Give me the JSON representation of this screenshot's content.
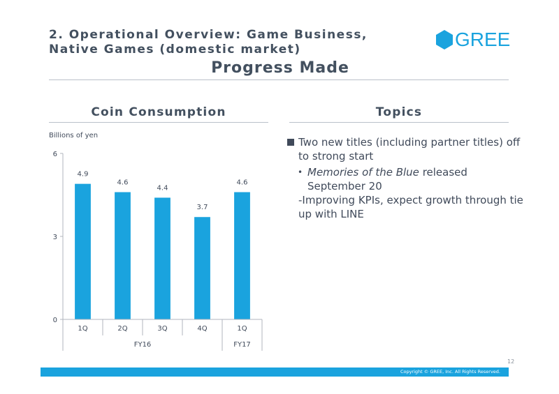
{
  "header": {
    "title_line1": "2. Operational Overview: Game Business,",
    "title_line2": "Native Games (domestic market)",
    "logo_text": "GREE",
    "headline": "Progress Made"
  },
  "left": {
    "section_title": "Coin Consumption",
    "unit_label": "Billions of yen"
  },
  "right": {
    "section_title": "Topics",
    "topic_main": "Two new titles (including partner titles) off to strong start",
    "topic_sub_title": "Memories of the Blue",
    "topic_sub_rest": " released September 20",
    "topic_note": "-Improving KPIs, expect growth through tie up with LINE"
  },
  "footer": {
    "page_number": "12",
    "copyright": "Copyright © GREE, Inc. All Rights Reserved."
  },
  "colors": {
    "accent": "#1aa3de",
    "text": "#43505f"
  },
  "chart_data": {
    "type": "bar",
    "categories": [
      "1Q",
      "2Q",
      "3Q",
      "4Q",
      "1Q"
    ],
    "groups": [
      {
        "label": "FY16",
        "count": 4
      },
      {
        "label": "FY17",
        "count": 1
      }
    ],
    "values": [
      4.9,
      4.6,
      4.4,
      3.7,
      4.6
    ],
    "data_labels": [
      "4.9",
      "4.6",
      "4.4",
      "3.7",
      "4.6"
    ],
    "y_ticks": [
      0,
      3,
      6
    ],
    "ylim": [
      0,
      6
    ],
    "ylabel": "Billions of yen",
    "title": "",
    "legend": "none",
    "grid": false,
    "color": "#1aa3de"
  }
}
